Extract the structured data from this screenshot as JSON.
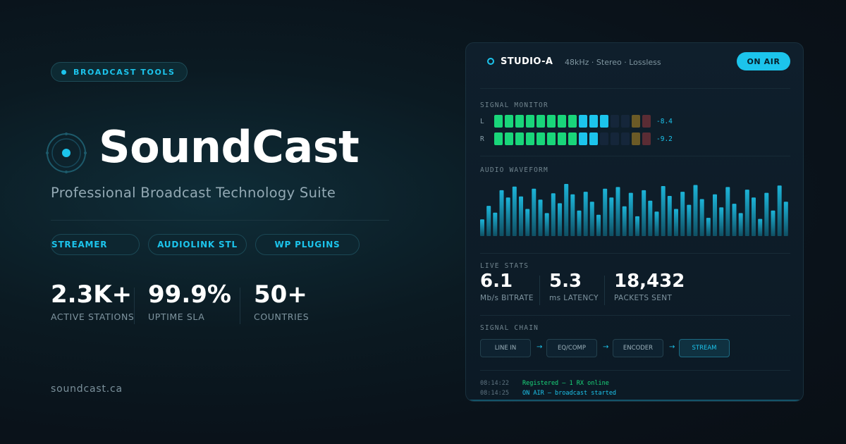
{
  "left": {
    "tag": "BROADCAST TOOLS",
    "brand": "SoundCast",
    "subtitle": "Professional Broadcast Technology Suite",
    "products": [
      "STREAMER",
      "AUDIOLINK STL",
      "WP PLUGINS"
    ],
    "stats": [
      {
        "value": "2.3K+",
        "label": "ACTIVE STATIONS"
      },
      {
        "value": "99.9%",
        "label": "UPTIME SLA"
      },
      {
        "value": "50+",
        "label": "COUNTRIES"
      }
    ],
    "website": "soundcast.ca"
  },
  "panel": {
    "studio_name": "STUDIO-A",
    "studio_specs": "48kHz · Stereo · Lossless",
    "on_air_label": "ON AIR",
    "signal_monitor": {
      "label": "SIGNAL MONITOR",
      "channels": [
        {
          "name": "L",
          "value": "-8.4",
          "lit_segments": 11
        },
        {
          "name": "R",
          "value": "-9.2",
          "lit_segments": 10
        }
      ],
      "total_segments": 15
    },
    "waveform": {
      "label": "AUDIO WAVEFORM",
      "levels": [
        0.32,
        0.58,
        0.45,
        0.88,
        0.74,
        0.95,
        0.76,
        0.52,
        0.91,
        0.7,
        0.44,
        0.82,
        0.63,
        1.0,
        0.8,
        0.49,
        0.85,
        0.66,
        0.41,
        0.91,
        0.74,
        0.94,
        0.57,
        0.83,
        0.38,
        0.88,
        0.68,
        0.47,
        0.96,
        0.77,
        0.52,
        0.85,
        0.6,
        0.98,
        0.71,
        0.35,
        0.8,
        0.55,
        0.94,
        0.62,
        0.44,
        0.89,
        0.74,
        0.33,
        0.83,
        0.49,
        0.97,
        0.66
      ]
    },
    "live_stats": {
      "label": "LIVE STATS",
      "items": [
        {
          "value": "6.1",
          "label": "Mb/s BITRATE"
        },
        {
          "value": "5.3",
          "label": "ms LATENCY"
        },
        {
          "value": "18,432",
          "label": "PACKETS SENT"
        }
      ]
    },
    "signal_chain": {
      "label": "SIGNAL CHAIN",
      "stages": [
        "LINE IN",
        "EQ/COMP",
        "ENCODER",
        "STREAM"
      ],
      "arrow": "→"
    },
    "log": [
      {
        "time": "08:14:22",
        "message": "Registered — 1 RX online"
      },
      {
        "time": "08:14:25",
        "message": "ON AIR — broadcast started"
      }
    ]
  },
  "colors": {
    "accent": "#1cc4ec",
    "meter_green": "#19d67a",
    "meter_cyan": "#1cc4ec",
    "meter_amber": "#6b5a26",
    "meter_red": "#5a2c34",
    "meter_off": "#15263a",
    "log_green": "#19d67a"
  }
}
